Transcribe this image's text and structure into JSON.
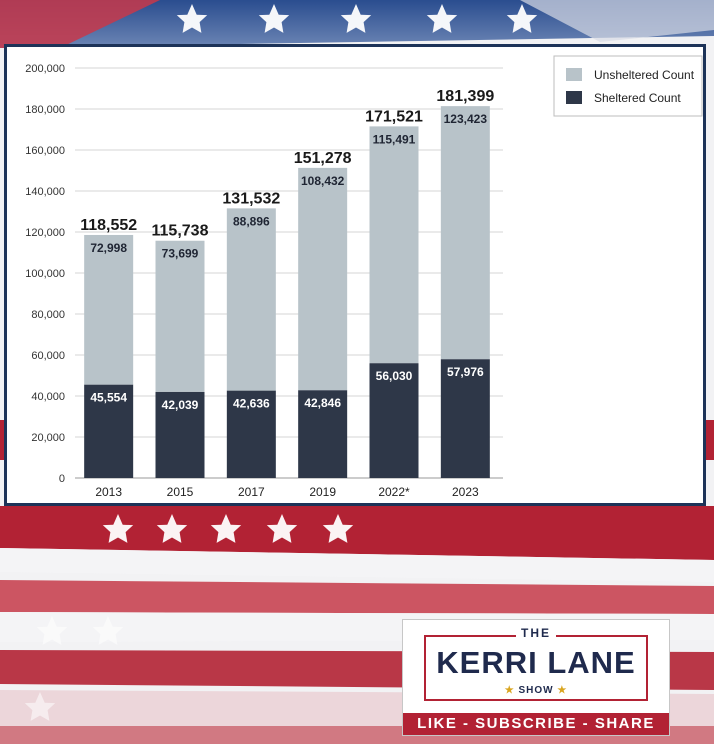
{
  "chart_data": {
    "type": "bar",
    "stacked": true,
    "categories": [
      "2013",
      "2015",
      "2017",
      "2019",
      "2022*",
      "2023"
    ],
    "series": [
      {
        "name": "Sheltered Count",
        "values": [
          45554,
          42039,
          42636,
          42846,
          56030,
          57976
        ],
        "color": "#2e3748"
      },
      {
        "name": "Unsheltered Count",
        "values": [
          72998,
          73699,
          88896,
          108432,
          115491,
          123423
        ],
        "color": "#b8c3c9"
      }
    ],
    "value_labels": {
      "sheltered": [
        "45,554",
        "42,039",
        "42,636",
        "42,846",
        "56,030",
        "57,976"
      ],
      "unsheltered": [
        "72,998",
        "73,699",
        "88,896",
        "108,432",
        "115,491",
        "123,423"
      ]
    },
    "totals": [
      118552,
      115738,
      131532,
      151278,
      171521,
      181399
    ],
    "total_labels": [
      "118,552",
      "115,738",
      "131,532",
      "151,278",
      "171,521",
      "181,399"
    ],
    "y_ticks": [
      0,
      20000,
      40000,
      60000,
      80000,
      100000,
      120000,
      140000,
      160000,
      180000,
      200000
    ],
    "y_tick_labels": [
      "0",
      "20,000",
      "40,000",
      "60,000",
      "80,000",
      "100,000",
      "120,000",
      "140,000",
      "160,000",
      "180,000",
      "200,000"
    ],
    "ylim": [
      0,
      200000
    ],
    "title": "",
    "xlabel": "",
    "ylabel": "",
    "grid": true,
    "legend": {
      "position": "top-right",
      "entries": [
        {
          "label": "Unsheltered Count",
          "color": "#b8c3c9"
        },
        {
          "label": "Sheltered Count",
          "color": "#2e3748"
        }
      ]
    }
  },
  "logo": {
    "the": "THE",
    "name": "KERRI LANE",
    "show": "SHOW",
    "star": "★",
    "banner": "LIKE - SUBSCRIBE - SHARE"
  },
  "colors": {
    "flag_red": "#b22234",
    "flag_blue": "#1d3358",
    "frame_border": "#1d3358"
  }
}
